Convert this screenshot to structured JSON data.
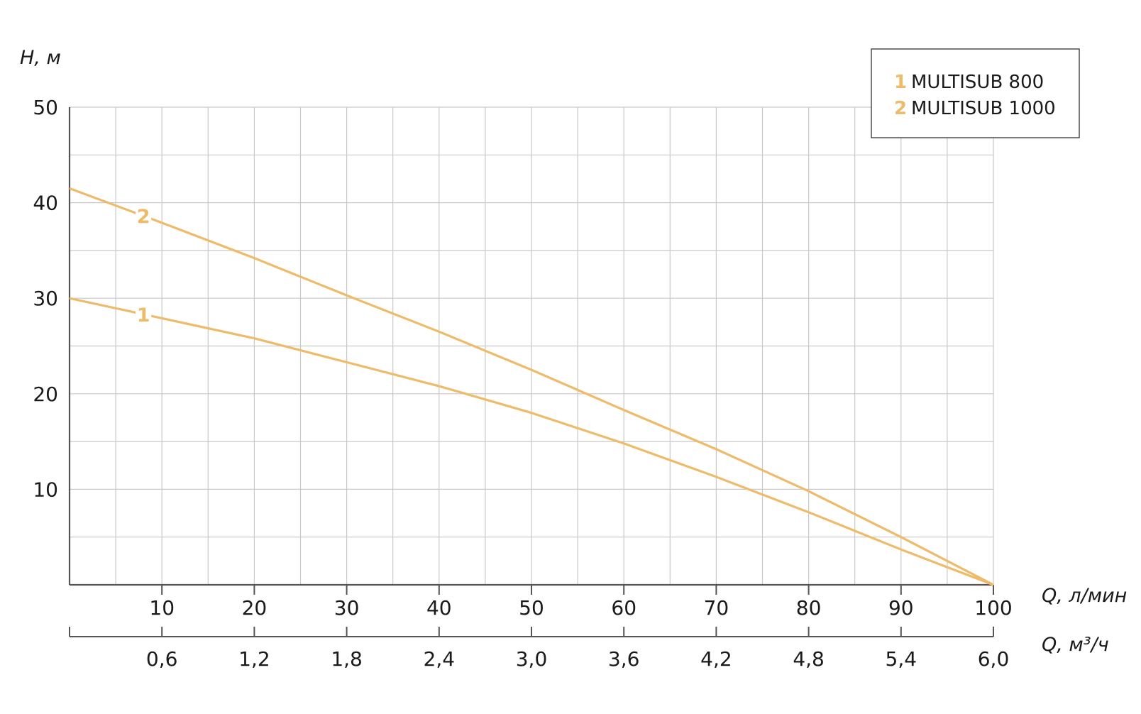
{
  "chart_data": {
    "type": "line",
    "ylabel": "H, м",
    "xlabel": "Q, л/мин",
    "xlabel2": "Q, м³/ч",
    "xlim": [
      0,
      100
    ],
    "ylim": [
      0,
      50
    ],
    "yticks": [
      10,
      20,
      30,
      40,
      50
    ],
    "xticks": [
      10,
      20,
      30,
      40,
      50,
      60,
      70,
      80,
      90,
      100
    ],
    "xticks2": [
      {
        "x": 10,
        "label": "0,6"
      },
      {
        "x": 20,
        "label": "1,2"
      },
      {
        "x": 30,
        "label": "1,8"
      },
      {
        "x": 40,
        "label": "2,4"
      },
      {
        "x": 50,
        "label": "3,0"
      },
      {
        "x": 60,
        "label": "3,6"
      },
      {
        "x": 70,
        "label": "4,2"
      },
      {
        "x": 80,
        "label": "4,8"
      },
      {
        "x": 90,
        "label": "5,4"
      },
      {
        "x": 100,
        "label": "6,0"
      }
    ],
    "grid": true,
    "legend_position": "top-right",
    "series": [
      {
        "name": "MULTISUB 800",
        "label": "1",
        "color": "#EDBB6A",
        "x": [
          0,
          10,
          20,
          30,
          40,
          50,
          60,
          70,
          80,
          90,
          100
        ],
        "y": [
          30,
          27.9,
          25.8,
          23.3,
          20.8,
          18,
          14.8,
          11.3,
          7.6,
          3.7,
          0
        ]
      },
      {
        "name": "MULTISUB 1000",
        "label": "2",
        "color": "#EDBB6A",
        "x": [
          0,
          10,
          20,
          30,
          40,
          50,
          60,
          70,
          80,
          90,
          100
        ],
        "y": [
          41.5,
          37.9,
          34.2,
          30.3,
          26.5,
          22.5,
          18.3,
          14.2,
          9.8,
          5,
          0
        ]
      }
    ]
  }
}
